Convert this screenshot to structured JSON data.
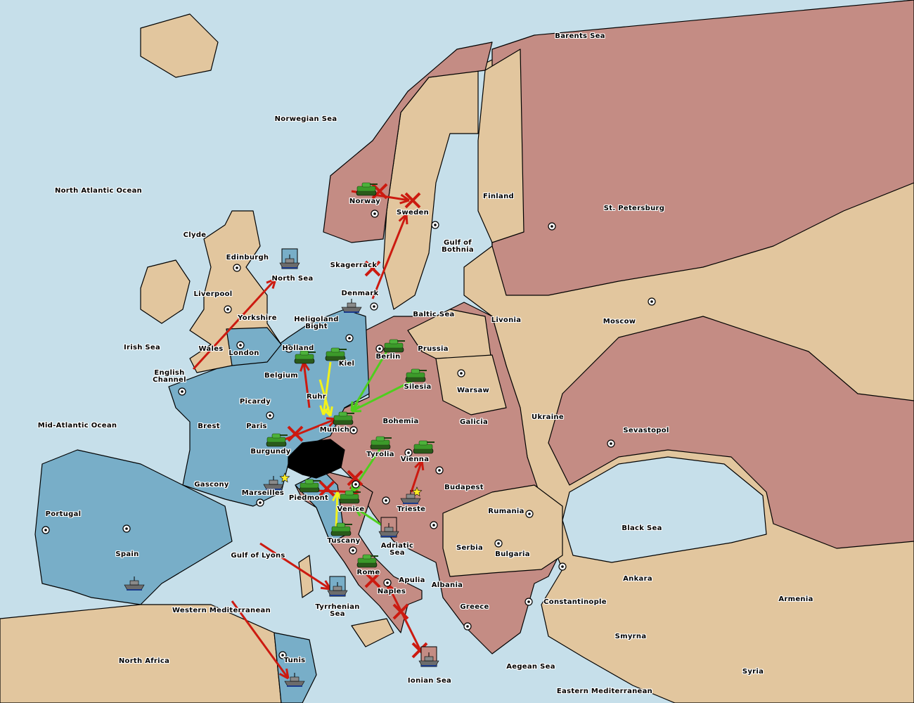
{
  "colors": {
    "sea": "#c6dfea",
    "neutral_land": "#e2c69e",
    "pink_power": "#c48c84",
    "blue_power": "#78aec8",
    "impassable": "#000000",
    "order_move": "#cc1a10",
    "order_support_yellow": "#f2f21a",
    "order_support_green": "#4fce1e",
    "army": "#3c9a2a",
    "fleet": "#6c6c6c",
    "star": "#ffee22"
  },
  "labels": [
    "Barents Sea",
    "Norwegian Sea",
    "North Atlantic Ocean",
    "Norway",
    "Sweden",
    "Finland",
    "St. Petersburg",
    "Gulf of\nBothnia",
    "Clyde",
    "Edinburgh",
    "Skagerrack",
    "North Sea",
    "Liverpool",
    "Denmark",
    "Baltic Sea",
    "Livonia",
    "Moscow",
    "Yorkshire",
    "Heligoland\nBight",
    "Irish Sea",
    "Wales",
    "London",
    "Holland",
    "Prussia",
    "Kiel",
    "Berlin",
    "English\nChannel",
    "Belgium",
    "Silesia",
    "Warsaw",
    "Picardy",
    "Ruhr",
    "Ukraine",
    "Mid-Atlantic Ocean",
    "Brest",
    "Paris",
    "Munich",
    "Bohemia",
    "Galicia",
    "Sevastopol",
    "Burgundy",
    "Tyrolia",
    "Vienna",
    "Gascony",
    "Budapest",
    "Marseilles",
    "Piedmont",
    "Venice",
    "Trieste",
    "Rumania",
    "Portugal",
    "Black Sea",
    "Tuscany",
    "Adriatic\nSea",
    "Serbia",
    "Bulgaria",
    "Spain",
    "Gulf of Lyons",
    "Rome",
    "Apulia",
    "Ankara",
    "Albania",
    "Naples",
    "Armenia",
    "Constantinople",
    "Tyrrhenian\nSea",
    "Greece",
    "Western Mediterranean",
    "Smyrna",
    "North Africa",
    "Tunis",
    "Aegean Sea",
    "Syria",
    "Ionian Sea",
    "Eastern Mediterranean"
  ],
  "units": [
    {
      "type": "army",
      "province": "Norway"
    },
    {
      "type": "army",
      "province": "Holland"
    },
    {
      "type": "army",
      "province": "Kiel"
    },
    {
      "type": "army",
      "province": "Berlin"
    },
    {
      "type": "army",
      "province": "Silesia"
    },
    {
      "type": "army",
      "province": "Munich"
    },
    {
      "type": "army",
      "province": "Burgundy"
    },
    {
      "type": "army",
      "province": "Tyrolia"
    },
    {
      "type": "army",
      "province": "Vienna"
    },
    {
      "type": "army",
      "province": "Piedmont"
    },
    {
      "type": "army",
      "province": "Venice"
    },
    {
      "type": "army",
      "province": "Tuscany"
    },
    {
      "type": "army",
      "province": "Rome"
    },
    {
      "type": "fleet",
      "province": "North Sea"
    },
    {
      "type": "fleet",
      "province": "Denmark"
    },
    {
      "type": "fleet",
      "province": "Marseilles"
    },
    {
      "type": "fleet",
      "province": "Trieste"
    },
    {
      "type": "fleet",
      "province": "Adriatic Sea"
    },
    {
      "type": "fleet",
      "province": "Tyrrhenian Sea"
    },
    {
      "type": "fleet",
      "province": "Spain"
    },
    {
      "type": "fleet",
      "province": "Tunis"
    },
    {
      "type": "fleet",
      "province": "Ionian Sea"
    }
  ]
}
